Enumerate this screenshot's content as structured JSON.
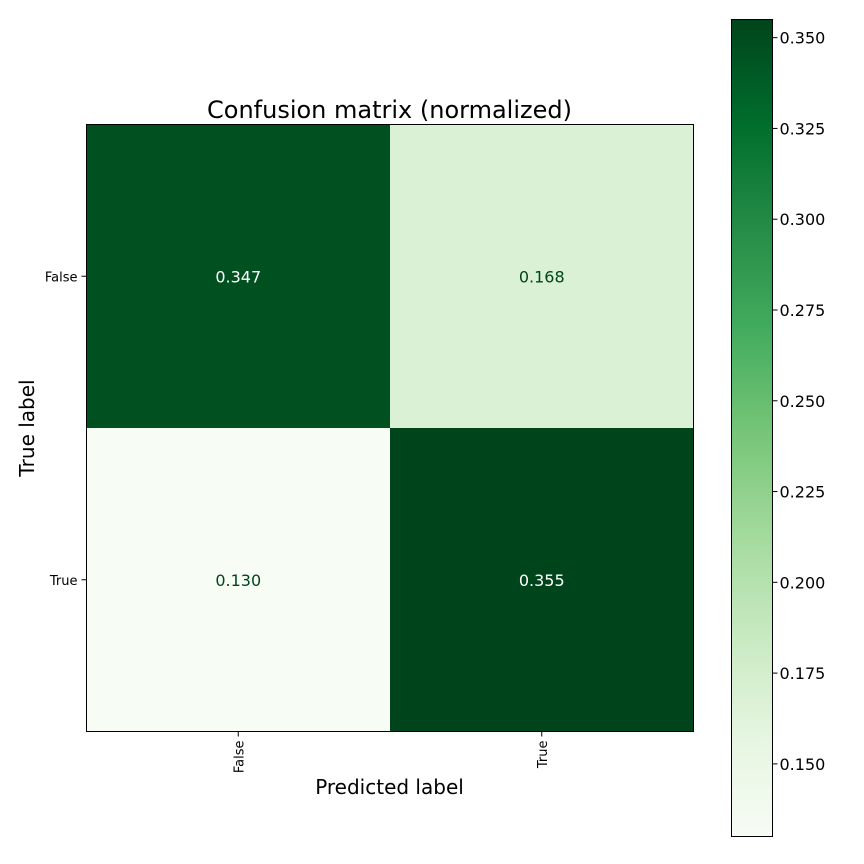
{
  "chart_data": {
    "type": "heatmap",
    "title": "Confusion matrix (normalized)",
    "xlabel": "Predicted label",
    "ylabel": "True label",
    "x_categories": [
      "False",
      "True"
    ],
    "y_categories": [
      "False",
      "True"
    ],
    "values": [
      [
        0.347,
        0.168
      ],
      [
        0.13,
        0.355
      ]
    ],
    "value_labels": [
      [
        "0.347",
        "0.168"
      ],
      [
        "0.130",
        "0.355"
      ]
    ],
    "colormap": "Greens",
    "color_range": [
      0.13,
      0.355
    ],
    "colorbar_ticks": [
      0.15,
      0.175,
      0.2,
      0.225,
      0.25,
      0.275,
      0.3,
      0.325,
      0.35
    ],
    "colorbar_tick_labels": [
      "0.150",
      "0.175",
      "0.200",
      "0.225",
      "0.250",
      "0.275",
      "0.300",
      "0.325",
      "0.350"
    ],
    "colors": {
      "greens": [
        "#f7fcf5",
        "#e5f5e0",
        "#c7e9c0",
        "#a1d99b",
        "#74c476",
        "#41ab5d",
        "#238b45",
        "#006d2c",
        "#00441b"
      ],
      "dark_text": "#00441b",
      "light_text": "#ffffff"
    }
  }
}
